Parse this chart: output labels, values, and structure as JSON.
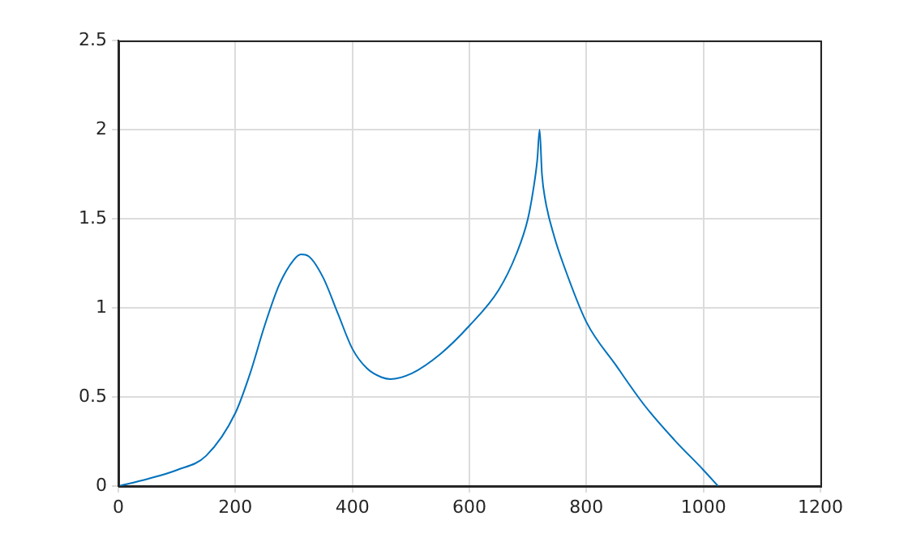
{
  "chart_data": {
    "type": "line",
    "x": [
      0,
      50,
      100,
      150,
      200,
      225,
      250,
      275,
      300,
      312,
      325,
      350,
      375,
      400,
      425,
      450,
      465,
      500,
      550,
      600,
      650,
      680,
      700,
      710,
      716,
      720,
      724,
      730,
      745,
      760,
      800,
      850,
      900,
      950,
      1000,
      1025
    ],
    "series": [
      {
        "color": "#0072bd",
        "values": [
          0,
          0.04,
          0.09,
          0.17,
          0.41,
          0.63,
          0.9,
          1.13,
          1.27,
          1.3,
          1.29,
          1.17,
          0.97,
          0.77,
          0.66,
          0.61,
          0.6,
          0.63,
          0.74,
          0.9,
          1.1,
          1.3,
          1.5,
          1.68,
          1.83,
          2.0,
          1.75,
          1.6,
          1.4,
          1.25,
          0.92,
          0.68,
          0.45,
          0.26,
          0.09,
          0
        ]
      }
    ],
    "xlim": [
      0,
      1200
    ],
    "xticks": [
      0,
      200,
      400,
      600,
      800,
      1000,
      1200
    ],
    "ylim": [
      0,
      2.5
    ],
    "yticks": [
      0,
      0.5,
      1,
      1.5,
      2,
      2.5
    ],
    "grid": true,
    "marker": "none",
    "line_style": "solid",
    "legend": false
  }
}
